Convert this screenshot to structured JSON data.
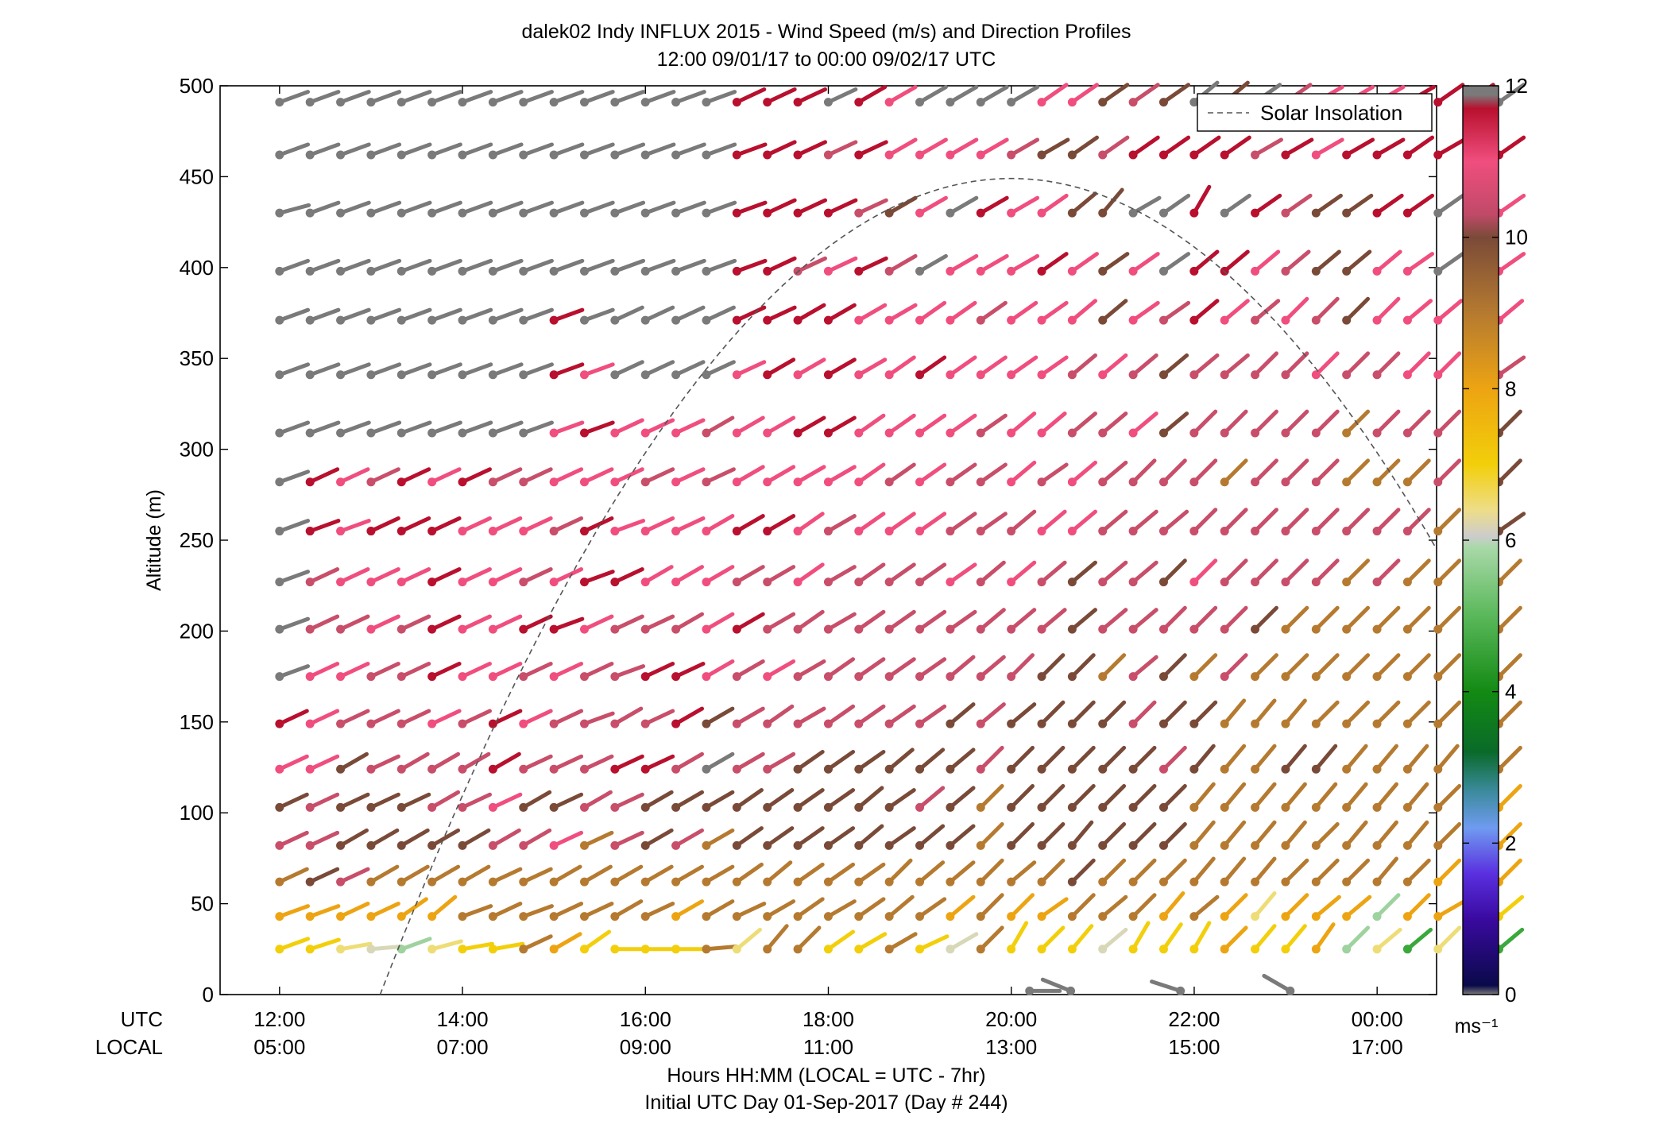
{
  "chart_data": {
    "type": "wind-barb-profile",
    "title": "dalek02 Indy INFLUX 2015 - Wind Speed (m/s) and Direction Profiles",
    "subtitle": "12:00 09/01/17 to 00:00 09/02/17  UTC",
    "ylabel": "Altitude (m)",
    "xlabel": "Hours HH:MM  (LOCAL = UTC - 7hr)",
    "xlabel2": "Initial UTC Day 01-Sep-2017 (Day # 244)",
    "row_label_utc": "UTC",
    "row_label_local": "LOCAL",
    "ylim": [
      0,
      500
    ],
    "yticks": [
      0,
      50,
      100,
      150,
      200,
      250,
      300,
      350,
      400,
      450,
      500
    ],
    "xlim_hours": [
      11.35,
      24.65
    ],
    "xticks_utc": [
      {
        "hour": 12,
        "label": "12:00",
        "local": "05:00"
      },
      {
        "hour": 14,
        "label": "14:00",
        "local": "07:00"
      },
      {
        "hour": 16,
        "label": "16:00",
        "local": "09:00"
      },
      {
        "hour": 18,
        "label": "18:00",
        "local": "11:00"
      },
      {
        "hour": 20,
        "label": "20:00",
        "local": "13:00"
      },
      {
        "hour": 22,
        "label": "22:00",
        "local": "15:00"
      },
      {
        "hour": 24,
        "label": "00:00",
        "local": "17:00"
      }
    ],
    "legend": {
      "entry": "Solar Insolation",
      "position": "top-right",
      "line_color": "#555555",
      "dashed": true
    },
    "solar_insolation": {
      "start_hour": 13.1,
      "peak_hour": 20.0,
      "peak_altitude": 449,
      "end_hour": 24.65,
      "end_altitude": 224
    },
    "colorbar": {
      "unit": "ms⁻¹",
      "range": [
        0,
        12
      ],
      "ticks": [
        0,
        2,
        4,
        6,
        8,
        10,
        12
      ],
      "stops": [
        {
          "value": 0.0,
          "color": "#7a7a7a"
        },
        {
          "value": 0.12,
          "color": "#0a0a4a"
        },
        {
          "value": 1.0,
          "color": "#3a0aa0"
        },
        {
          "value": 1.6,
          "color": "#5a30e0"
        },
        {
          "value": 2.2,
          "color": "#6f9bf0"
        },
        {
          "value": 2.7,
          "color": "#3a8a9a"
        },
        {
          "value": 3.2,
          "color": "#0a6a2a"
        },
        {
          "value": 4.0,
          "color": "#138a13"
        },
        {
          "value": 5.0,
          "color": "#5ab85a"
        },
        {
          "value": 5.9,
          "color": "#a8d8a8"
        },
        {
          "value": 6.05,
          "color": "#cccccc"
        },
        {
          "value": 6.4,
          "color": "#eedd88"
        },
        {
          "value": 7.0,
          "color": "#f2cf0a"
        },
        {
          "value": 8.0,
          "color": "#eda412"
        },
        {
          "value": 9.0,
          "color": "#b57a30"
        },
        {
          "value": 10.0,
          "color": "#7a4a38"
        },
        {
          "value": 10.3,
          "color": "#c04a68"
        },
        {
          "value": 11.0,
          "color": "#f04e7e"
        },
        {
          "value": 11.7,
          "color": "#b8102e"
        },
        {
          "value": 11.88,
          "color": "#7a7a7a"
        }
      ]
    },
    "columns_start_hour": 12.0,
    "columns_step_hour": 0.3333,
    "altitudes": [
      25,
      43,
      62,
      82,
      103,
      124,
      149,
      175,
      201,
      227,
      255,
      282,
      309,
      341,
      371,
      398,
      430,
      462,
      491
    ],
    "speed_key": "R=red(>11.5) P=pink(~11) M=mauve(~10.3) N=brown(~9.7) B=tan(~9) O=orange(~8) Y=yellow(~7) L=light yellow(~6.5) K=cream(~6.2) G=light green(~5.8) D=green(~5) E=gray(>12 or <0.5)",
    "direction_key": "barb angle in degrees counter-clockwise from east (screen-up positive)",
    "rows_speed_code": [
      "YYLKGLYYBOYYYYBLBBYYBYKBYYYKYYYOYYOGLDLLD",
      "OOOOOOBBBBBBBOBBBBBBBBOBOOBBBOBOLOOOGOOOY",
      "BNMBBBBBBBBBBBBBBBBBBBBBBBNBBBBBBBBBBBOBO",
      "MMNNNNNMMPBMNMBNNNNNNNNBNNNNNNBBBBBBBBBOO",
      "NMNNNMMPNNMMNNNNNNNNNMNBNNNNNNBBBBBBBBBBO",
      "PPNMMMMRMMMRRMEMMNNNNNNMNNNNNMNBBNNBBBBBB",
      "RPMMMPMRPMMMMRNMMMMMMMNMNNNNMNNBBBBBBBBBB",
      "EPPMMRPPMPMMRRPMPMMMMMMMMNNBMNBMBBBBBBBBB",
      "EMMPMRPPRRPMMMPRMMMMMMMMMMNMMMMMNBBBBBBBB",
      "EMPPPRPPMPRRPPPMMPMMMMPMPMNMMNPMMMMBMBBBB",
      "ERPRRRPPPMRPPPPRRPMPPPMMMPPMMMMMMMMMMMBBN",
      "ERPMRPRMMPPPMPMPPPPPMPMMPMPMMMMBMMMBBBMMN",
      "EEEEEEEEEPRPPPMPPRRPPPPMPPMMPNMMMMMBMMMMN",
      "EEEEEEEEERPEEEEPRPRPPRPPPPMPMNMMMMPMMPPMM",
      "EEEEEEEEEREEEEERRRRPPPPMPPPNPMRPMPMNPPPPP",
      "EEEEEEEEEEEEEEERRMPRMEPPPRPNPERRPMNNPPEPP",
      "EEEEEEEEEEEEEEERRRRMNPERPPNNEERERMNNRRERP",
      "EEEEEEEEEEEEEEERRRMRPPPPMNNMRRRRMRPRRRRRR",
      "EEEEEEEEEEEEEEERRRERPEEEEPPNMNENEMPPPRRRE"
    ],
    "rows_direction_deg": [
      [
        20,
        18,
        10,
        5,
        20,
        15,
        10,
        10,
        25,
        30,
        35,
        0,
        0,
        0,
        5,
        40,
        50,
        45,
        35,
        30,
        30,
        25,
        30,
        45,
        60,
        45,
        50,
        40,
        60,
        55,
        60,
        45,
        50,
        50,
        55,
        45,
        40,
        40,
        45,
        60,
        40
      ],
      [
        20,
        20,
        25,
        25,
        35,
        40,
        20,
        25,
        20,
        25,
        25,
        30,
        25,
        30,
        30,
        25,
        30,
        35,
        30,
        35,
        40,
        35,
        40,
        45,
        45,
        35,
        45,
        40,
        45,
        50,
        40,
        45,
        50,
        45,
        40,
        40,
        45,
        45,
        30,
        35,
        40
      ],
      [
        25,
        25,
        25,
        30,
        30,
        30,
        30,
        25,
        25,
        30,
        30,
        30,
        30,
        30,
        30,
        35,
        40,
        35,
        35,
        35,
        45,
        40,
        40,
        45,
        40,
        45,
        45,
        45,
        45,
        45,
        50,
        50,
        50,
        45,
        45,
        45,
        50,
        45,
        45,
        40,
        45
      ],
      [
        25,
        25,
        30,
        30,
        30,
        30,
        30,
        30,
        30,
        25,
        25,
        25,
        30,
        30,
        30,
        35,
        35,
        35,
        35,
        40,
        35,
        40,
        40,
        45,
        45,
        45,
        50,
        45,
        45,
        45,
        50,
        50,
        50,
        50,
        45,
        50,
        50,
        50,
        45,
        45,
        45
      ],
      [
        25,
        25,
        25,
        25,
        25,
        30,
        25,
        25,
        30,
        25,
        30,
        25,
        30,
        30,
        30,
        35,
        35,
        35,
        35,
        40,
        35,
        40,
        40,
        45,
        45,
        45,
        45,
        45,
        45,
        45,
        50,
        50,
        50,
        50,
        50,
        50,
        50,
        50,
        45,
        45,
        45
      ],
      [
        25,
        25,
        30,
        25,
        30,
        30,
        30,
        30,
        25,
        25,
        25,
        25,
        25,
        30,
        30,
        30,
        30,
        35,
        35,
        35,
        40,
        40,
        40,
        45,
        45,
        45,
        45,
        45,
        45,
        45,
        50,
        50,
        50,
        50,
        50,
        50,
        50,
        50,
        50,
        45,
        45
      ],
      [
        25,
        25,
        25,
        25,
        25,
        25,
        25,
        25,
        25,
        25,
        20,
        30,
        25,
        30,
        30,
        30,
        35,
        30,
        35,
        35,
        35,
        35,
        40,
        40,
        40,
        45,
        45,
        45,
        45,
        45,
        45,
        50,
        50,
        50,
        45,
        45,
        45,
        45,
        45,
        45,
        45
      ],
      [
        20,
        25,
        25,
        25,
        25,
        25,
        25,
        25,
        25,
        25,
        25,
        20,
        25,
        25,
        30,
        30,
        30,
        30,
        35,
        35,
        35,
        35,
        40,
        40,
        45,
        45,
        45,
        45,
        40,
        45,
        45,
        45,
        45,
        45,
        45,
        45,
        45,
        45,
        45,
        45,
        45
      ],
      [
        20,
        25,
        25,
        25,
        25,
        25,
        25,
        25,
        25,
        20,
        25,
        25,
        25,
        30,
        30,
        30,
        30,
        35,
        30,
        35,
        35,
        35,
        35,
        40,
        40,
        40,
        40,
        40,
        40,
        45,
        45,
        45,
        45,
        45,
        45,
        45,
        45,
        45,
        45,
        45,
        45
      ],
      [
        20,
        25,
        25,
        25,
        25,
        25,
        25,
        25,
        25,
        25,
        20,
        25,
        30,
        30,
        30,
        30,
        30,
        35,
        30,
        35,
        35,
        35,
        35,
        40,
        40,
        40,
        40,
        40,
        40,
        45,
        45,
        45,
        45,
        45,
        45,
        45,
        45,
        45,
        45,
        45,
        45
      ],
      [
        20,
        20,
        20,
        25,
        25,
        25,
        25,
        25,
        25,
        25,
        25,
        20,
        25,
        25,
        30,
        30,
        30,
        35,
        30,
        35,
        35,
        35,
        35,
        35,
        40,
        40,
        40,
        40,
        40,
        40,
        45,
        45,
        45,
        45,
        45,
        45,
        45,
        45,
        45,
        45,
        35
      ],
      [
        20,
        25,
        25,
        25,
        25,
        25,
        25,
        25,
        25,
        25,
        25,
        25,
        25,
        25,
        25,
        30,
        30,
        30,
        30,
        35,
        35,
        35,
        35,
        35,
        40,
        35,
        40,
        40,
        45,
        45,
        45,
        45,
        45,
        45,
        45,
        45,
        45,
        45,
        45,
        45,
        45
      ],
      [
        20,
        20,
        20,
        20,
        20,
        20,
        20,
        20,
        20,
        20,
        20,
        25,
        25,
        25,
        30,
        30,
        30,
        30,
        30,
        35,
        35,
        35,
        35,
        35,
        40,
        40,
        40,
        40,
        40,
        40,
        45,
        45,
        45,
        45,
        45,
        45,
        45,
        45,
        45,
        45,
        45
      ],
      [
        20,
        20,
        20,
        20,
        20,
        20,
        20,
        20,
        20,
        20,
        20,
        25,
        25,
        25,
        25,
        25,
        30,
        30,
        30,
        30,
        35,
        35,
        35,
        35,
        35,
        35,
        40,
        40,
        40,
        40,
        40,
        40,
        45,
        45,
        45,
        45,
        45,
        45,
        45,
        45,
        35
      ],
      [
        20,
        20,
        20,
        20,
        20,
        20,
        20,
        20,
        20,
        20,
        20,
        25,
        25,
        25,
        25,
        25,
        25,
        30,
        30,
        30,
        30,
        35,
        35,
        35,
        35,
        35,
        40,
        40,
        35,
        35,
        40,
        40,
        40,
        45,
        45,
        45,
        45,
        40,
        40,
        40,
        40
      ],
      [
        20,
        20,
        20,
        20,
        20,
        20,
        20,
        20,
        20,
        20,
        20,
        20,
        20,
        20,
        20,
        20,
        25,
        25,
        25,
        25,
        30,
        30,
        30,
        30,
        30,
        35,
        35,
        35,
        35,
        35,
        40,
        40,
        40,
        40,
        40,
        40,
        40,
        35,
        35,
        35,
        35
      ],
      [
        15,
        20,
        20,
        20,
        20,
        20,
        20,
        20,
        20,
        20,
        20,
        20,
        20,
        20,
        20,
        20,
        25,
        25,
        25,
        25,
        30,
        30,
        30,
        30,
        30,
        35,
        40,
        50,
        30,
        35,
        60,
        35,
        35,
        35,
        35,
        35,
        35,
        35,
        35,
        30,
        35
      ],
      [
        20,
        20,
        20,
        20,
        20,
        20,
        20,
        20,
        20,
        20,
        20,
        20,
        20,
        20,
        20,
        20,
        25,
        25,
        25,
        25,
        30,
        30,
        30,
        30,
        30,
        30,
        35,
        35,
        35,
        35,
        35,
        35,
        30,
        30,
        30,
        30,
        30,
        35,
        30,
        30,
        35
      ],
      [
        20,
        20,
        20,
        20,
        20,
        20,
        20,
        20,
        20,
        20,
        20,
        20,
        20,
        20,
        20,
        25,
        25,
        25,
        25,
        30,
        30,
        30,
        30,
        30,
        30,
        35,
        35,
        35,
        35,
        35,
        40,
        40,
        35,
        35,
        30,
        30,
        30,
        30,
        35,
        35,
        35
      ]
    ],
    "ground_barbs": [
      {
        "hour": 20.2,
        "altitude": 2,
        "deg": 0,
        "code": "E"
      },
      {
        "hour": 20.65,
        "altitude": 2,
        "deg": 158,
        "code": "E"
      },
      {
        "hour": 21.85,
        "altitude": 2,
        "deg": 162,
        "code": "E"
      },
      {
        "hour": 23.05,
        "altitude": 2,
        "deg": 150,
        "code": "E"
      }
    ],
    "code_colors": {
      "R": "#b8102e",
      "P": "#f04e7e",
      "M": "#c84e6a",
      "N": "#7a4a38",
      "B": "#b57a30",
      "O": "#eda412",
      "Y": "#f2cf0a",
      "L": "#eedd77",
      "K": "#d8d8b8",
      "G": "#9ed29e",
      "D": "#3aa83a",
      "E": "#7a7a7a"
    }
  }
}
